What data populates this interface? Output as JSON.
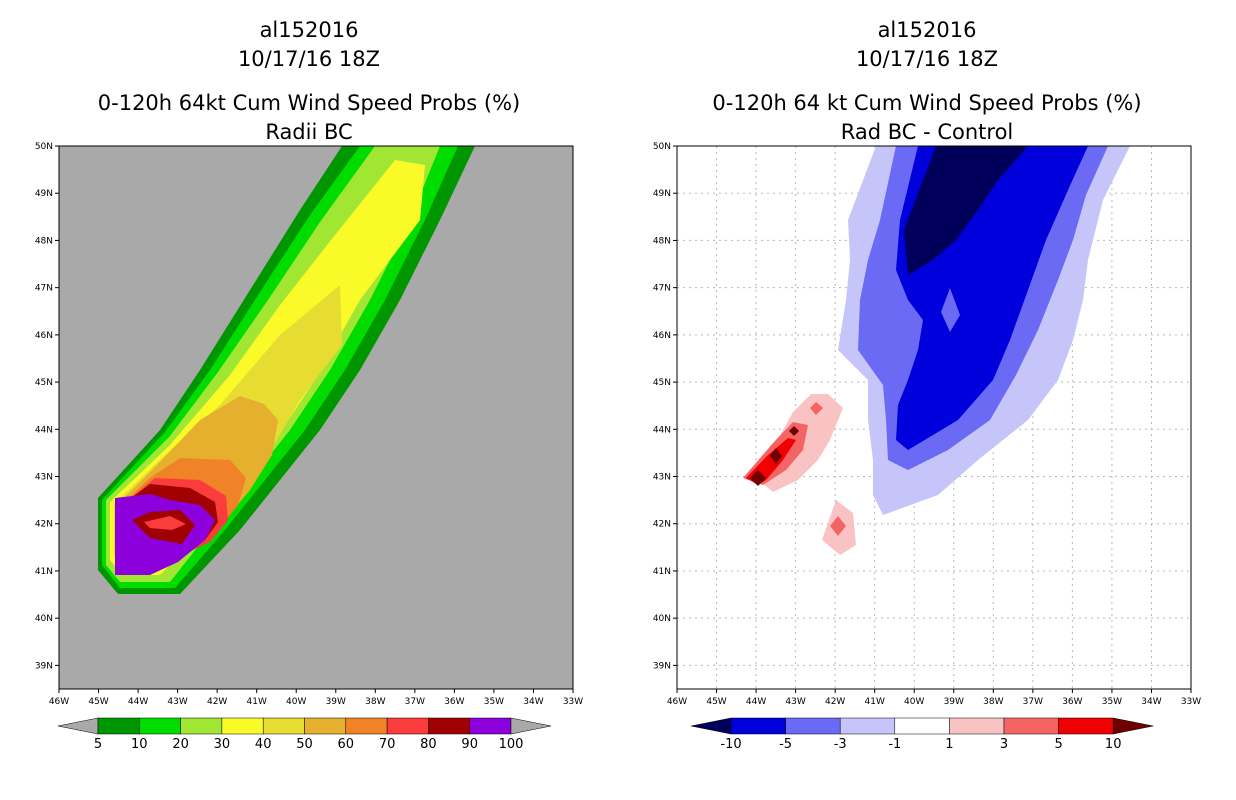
{
  "left_panel": {
    "title_line1": "al152016",
    "title_line2": "10/17/16 18Z",
    "title_line3": "0-120h 64kt Cum Wind Speed Probs (%)",
    "title_line4": "Radii BC"
  },
  "right_panel": {
    "title_line1": "al152016",
    "title_line2": "10/17/16 18Z",
    "title_line3": "0-120h 64 kt Cum Wind Speed Probs (%)",
    "title_line4": "Rad BC - Control"
  },
  "colors": {
    "map_background_left": "#a9a9a9",
    "grid": "#b8b8b8"
  },
  "chart_data": [
    {
      "type": "contour_map",
      "title": "0-120h 64kt Cum Wind Speed Probs (%) - Radii BC",
      "x_ticks": [
        "46W",
        "45W",
        "44W",
        "43W",
        "42W",
        "41W",
        "40W",
        "39W",
        "38W",
        "37W",
        "36W",
        "35W",
        "34W",
        "33W"
      ],
      "y_ticks": [
        "50N",
        "49N",
        "48N",
        "47N",
        "46N",
        "45N",
        "44N",
        "43N",
        "42N",
        "41N",
        "40N",
        "39N"
      ],
      "lon_range": [
        -46,
        -33
      ],
      "lat_range": [
        38.5,
        50
      ],
      "colorbar": {
        "levels": [
          "5",
          "10",
          "20",
          "30",
          "40",
          "50",
          "60",
          "70",
          "80",
          "90",
          "100"
        ],
        "colors": [
          "#009600",
          "#00dc00",
          "#a0e632",
          "#fafa28",
          "#e6dc32",
          "#e6af2d",
          "#f08228",
          "#fa3c3c",
          "#a00000",
          "#8c00dc"
        ],
        "under_color": "#a9a9a9",
        "over_color": "#a9a9a9"
      }
    },
    {
      "type": "contour_map",
      "title": "0-120h 64 kt Cum Wind Speed Probs (%) - Rad BC - Control",
      "x_ticks": [
        "46W",
        "45W",
        "44W",
        "43W",
        "42W",
        "41W",
        "40W",
        "39W",
        "38W",
        "37W",
        "36W",
        "35W",
        "34W",
        "33W"
      ],
      "y_ticks": [
        "50N",
        "49N",
        "48N",
        "47N",
        "46N",
        "45N",
        "44N",
        "43N",
        "42N",
        "41N",
        "40N",
        "39N"
      ],
      "lon_range": [
        -46,
        -33
      ],
      "lat_range": [
        38.5,
        50
      ],
      "colorbar": {
        "levels": [
          "-10",
          "-5",
          "-3",
          "-1",
          "1",
          "3",
          "5",
          "10"
        ],
        "colors": [
          "#0000dc",
          "#6a6af5",
          "#c5c5fa",
          "#ffffff",
          "#fac3c3",
          "#f56464",
          "#f00000"
        ],
        "under_color": "#00005a",
        "over_color": "#6e0000"
      }
    }
  ]
}
